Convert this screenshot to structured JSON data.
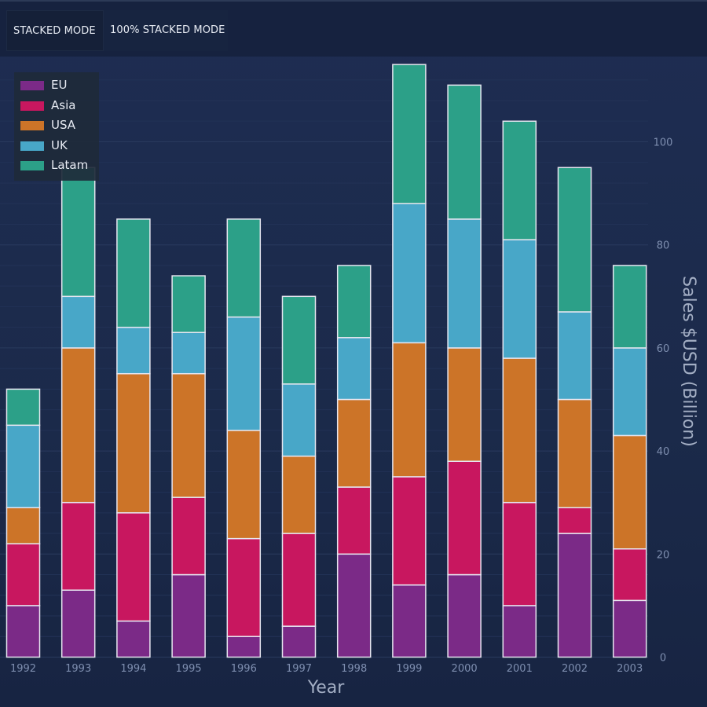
{
  "toolbar": {
    "stacked_label": "STACKED MODE",
    "stacked100_label": "100% STACKED MODE"
  },
  "colors": {
    "background": "#1c2b4a",
    "stroke": "#e6e6f0",
    "axis_text": "#7f8fb0",
    "title_text": "#a3aec4"
  },
  "chart_data": {
    "type": "bar",
    "stacked": true,
    "title": "",
    "xlabel": "Year",
    "ylabel": "Sales $USD (Billion)",
    "ylim": [
      0,
      115
    ],
    "y_ticks": [
      0,
      20,
      40,
      60,
      80,
      100
    ],
    "y_axis_side": "right",
    "legend_position": "top-left",
    "categories": [
      "1992",
      "1993",
      "1994",
      "1995",
      "1996",
      "1997",
      "1998",
      "1999",
      "2000",
      "2001",
      "2002",
      "2003"
    ],
    "series": [
      {
        "name": "EU",
        "color": "#7b2a87",
        "values": [
          10,
          13,
          7,
          16,
          4,
          6,
          20,
          14,
          16,
          10,
          24,
          11
        ]
      },
      {
        "name": "Asia",
        "color": "#c8175f",
        "values": [
          12,
          17,
          21,
          15,
          19,
          18,
          13,
          21,
          22,
          20,
          5,
          10
        ]
      },
      {
        "name": "USA",
        "color": "#cc7428",
        "values": [
          7,
          30,
          27,
          24,
          21,
          15,
          17,
          26,
          22,
          28,
          21,
          22
        ]
      },
      {
        "name": "UK",
        "color": "#48a7c8",
        "values": [
          16,
          10,
          9,
          8,
          22,
          14,
          12,
          27,
          25,
          23,
          17,
          17
        ]
      },
      {
        "name": "Latam",
        "color": "#2ca088",
        "values": [
          7,
          25,
          21,
          11,
          19,
          17,
          14,
          27,
          26,
          23,
          28,
          16
        ]
      }
    ]
  }
}
